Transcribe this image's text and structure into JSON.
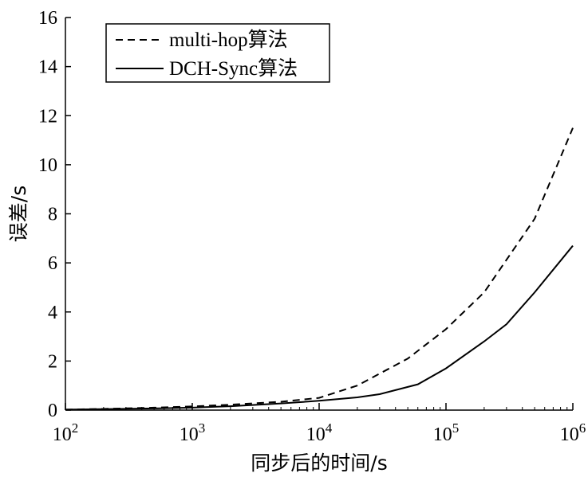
{
  "chart_data": {
    "type": "line",
    "xlabel": "同步后的时间/s",
    "ylabel": "误差/s",
    "xscale": "log",
    "xlim": [
      100,
      1000000
    ],
    "ylim": [
      0,
      16
    ],
    "x_ticks": [
      {
        "value": 100,
        "base": "10",
        "exp": "2"
      },
      {
        "value": 1000,
        "base": "10",
        "exp": "3"
      },
      {
        "value": 10000,
        "base": "10",
        "exp": "4"
      },
      {
        "value": 100000,
        "base": "10",
        "exp": "5"
      },
      {
        "value": 1000000,
        "base": "10",
        "exp": "6"
      }
    ],
    "y_ticks": [
      "0",
      "2",
      "4",
      "6",
      "8",
      "10",
      "12",
      "14",
      "16"
    ],
    "legend_position": "top-left",
    "grid": false,
    "series": [
      {
        "name": "multi-hop算法",
        "style": "dashed",
        "color": "#000000",
        "x": [
          100,
          200,
          500,
          1000,
          2000,
          5000,
          10000,
          20000,
          50000,
          100000,
          200000,
          500000,
          1000000
        ],
        "y": [
          0.02,
          0.05,
          0.1,
          0.15,
          0.22,
          0.34,
          0.5,
          1.0,
          2.1,
          3.3,
          4.8,
          7.8,
          11.5
        ]
      },
      {
        "name": "DCH-Sync算法",
        "style": "solid",
        "color": "#000000",
        "x": [
          100,
          200,
          500,
          1000,
          2000,
          5000,
          10000,
          20000,
          30000,
          60000,
          100000,
          200000,
          300000,
          500000,
          1000000
        ],
        "y": [
          0.02,
          0.04,
          0.07,
          0.1,
          0.16,
          0.27,
          0.38,
          0.52,
          0.65,
          1.05,
          1.7,
          2.8,
          3.5,
          4.8,
          6.7
        ]
      }
    ]
  }
}
